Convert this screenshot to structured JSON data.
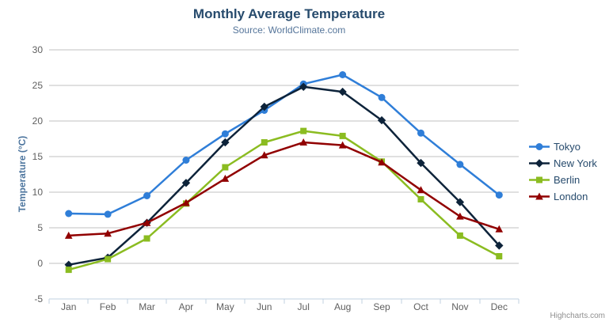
{
  "credits": "Highcharts.com",
  "icons": {
    "context_menu": "hamburger-icon"
  },
  "chart_data": {
    "type": "line",
    "title": "Monthly Average Temperature",
    "subtitle": "Source: WorldClimate.com",
    "xlabel": "",
    "ylabel": "Temperature (°C)",
    "categories": [
      "Jan",
      "Feb",
      "Mar",
      "Apr",
      "May",
      "Jun",
      "Jul",
      "Aug",
      "Sep",
      "Oct",
      "Nov",
      "Dec"
    ],
    "yticks": [
      -5,
      0,
      5,
      10,
      15,
      20,
      25,
      30
    ],
    "ylim": [
      -5,
      30
    ],
    "grid": true,
    "legend_position": "right",
    "colors": {
      "grid": "#C0C0C0",
      "axis_line": "#C0D0E0",
      "axis_label": "#606060"
    },
    "series": [
      {
        "name": "Tokyo",
        "color": "#2f7ed8",
        "marker": "circle",
        "values": [
          7.0,
          6.9,
          9.5,
          14.5,
          18.2,
          21.5,
          25.2,
          26.5,
          23.3,
          18.3,
          13.9,
          9.6
        ]
      },
      {
        "name": "New York",
        "color": "#0d233a",
        "marker": "diamond",
        "values": [
          -0.2,
          0.8,
          5.7,
          11.3,
          17.0,
          22.0,
          24.8,
          24.1,
          20.1,
          14.1,
          8.6,
          2.5
        ]
      },
      {
        "name": "Berlin",
        "color": "#8bbc21",
        "marker": "square",
        "values": [
          -0.9,
          0.6,
          3.5,
          8.4,
          13.5,
          17.0,
          18.6,
          17.9,
          14.3,
          9.0,
          3.9,
          1.0
        ]
      },
      {
        "name": "London",
        "color": "#910000",
        "marker": "triangle",
        "values": [
          3.9,
          4.2,
          5.7,
          8.5,
          11.9,
          15.2,
          17.0,
          16.6,
          14.2,
          10.3,
          6.6,
          4.8
        ]
      }
    ]
  }
}
